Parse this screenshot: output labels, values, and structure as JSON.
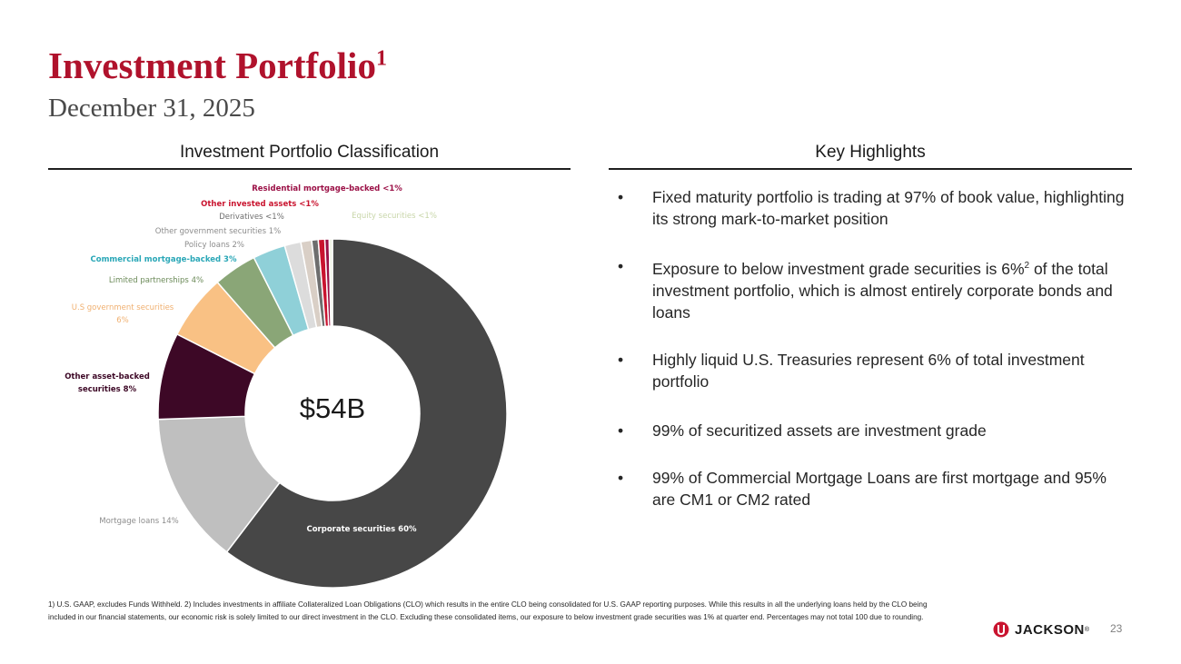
{
  "header": {
    "title": "Investment Portfolio",
    "title_sup": "1",
    "subtitle": "December 31, 2025"
  },
  "left_section": {
    "heading": "Investment Portfolio Classification"
  },
  "right_section": {
    "heading": "Key Highlights",
    "bullet_char": "•",
    "items": [
      {
        "text": "Fixed maturity portfolio is trading at 97% of book value, highlighting its strong mark-to-market position"
      },
      {
        "before": "Exposure to below investment grade securities is 6%",
        "sup": "2",
        "after": " of the total investment portfolio, which is almost entirely corporate bonds and loans"
      },
      {
        "text": "Highly liquid U.S. Treasuries represent 6% of total investment portfolio"
      },
      {
        "text": "99% of securitized assets are investment grade"
      },
      {
        "text": "99% of Commercial Mortgage Loans are first mortgage and 95% are CM1 or CM2 rated"
      }
    ]
  },
  "chart_data": {
    "type": "pie",
    "center_label": "$54B",
    "slices": [
      {
        "label": "Corporate securities 60%",
        "value": 60,
        "color": "#474747",
        "label_color": "#ffffff"
      },
      {
        "label": "Mortgage loans 14%",
        "value": 14,
        "color": "#bfbfbf",
        "label_color": "#8c8c8c"
      },
      {
        "label": "Other asset-backed securities 8%",
        "value": 8,
        "color": "#3d0826",
        "label_color": "#3d0826"
      },
      {
        "label": "U.S government securities 6%",
        "value": 6,
        "color": "#f9c184",
        "label_color": "#f0b070"
      },
      {
        "label": "Limited partnerships 4%",
        "value": 4,
        "color": "#8aa677",
        "label_color": "#6b8a58"
      },
      {
        "label": "Commercial mortgage-backed 3%",
        "value": 3,
        "color": "#8fd0d8",
        "label_color": "#2aa7b7"
      },
      {
        "label": "Policy loans 2%",
        "value": 1.5,
        "color": "#dcdcdc",
        "label_color": "#8c8c8c"
      },
      {
        "label": "Other government securities 1%",
        "value": 1,
        "color": "#d9cfc6",
        "label_color": "#8c8c8c"
      },
      {
        "label": "Derivatives <1%",
        "value": 0.6,
        "color": "#6e6e6e",
        "label_color": "#6e6e6e"
      },
      {
        "label": "Other invested assets <1%",
        "value": 0.6,
        "color": "#c9142f",
        "label_color": "#c9142f"
      },
      {
        "label": "Residential mortgage-backed <1%",
        "value": 0.4,
        "color": "#9b1046",
        "label_color": "#9b1046"
      },
      {
        "label": "Equity securities <1%",
        "value": 0.3,
        "color": "#eef3e4",
        "label_color": "#c8d6a9"
      }
    ]
  },
  "footnote": {
    "text": "1) U.S. GAAP, excludes Funds Withheld. 2) Includes investments in affiliate Collateralized Loan Obligations (CLO) which results in the entire CLO being consolidated for U.S. GAAP reporting purposes. While this results in all the underlying loans held by the CLO being included in our financial statements, our economic risk is solely limited to our direct investment in the CLO. Excluding these consolidated items, our exposure to below investment grade securities was 1% at quarter end. Percentages may not total 100 due to rounding."
  },
  "footer": {
    "logo_text": "JACKSON",
    "logo_mark": "®",
    "page_number": "23"
  }
}
